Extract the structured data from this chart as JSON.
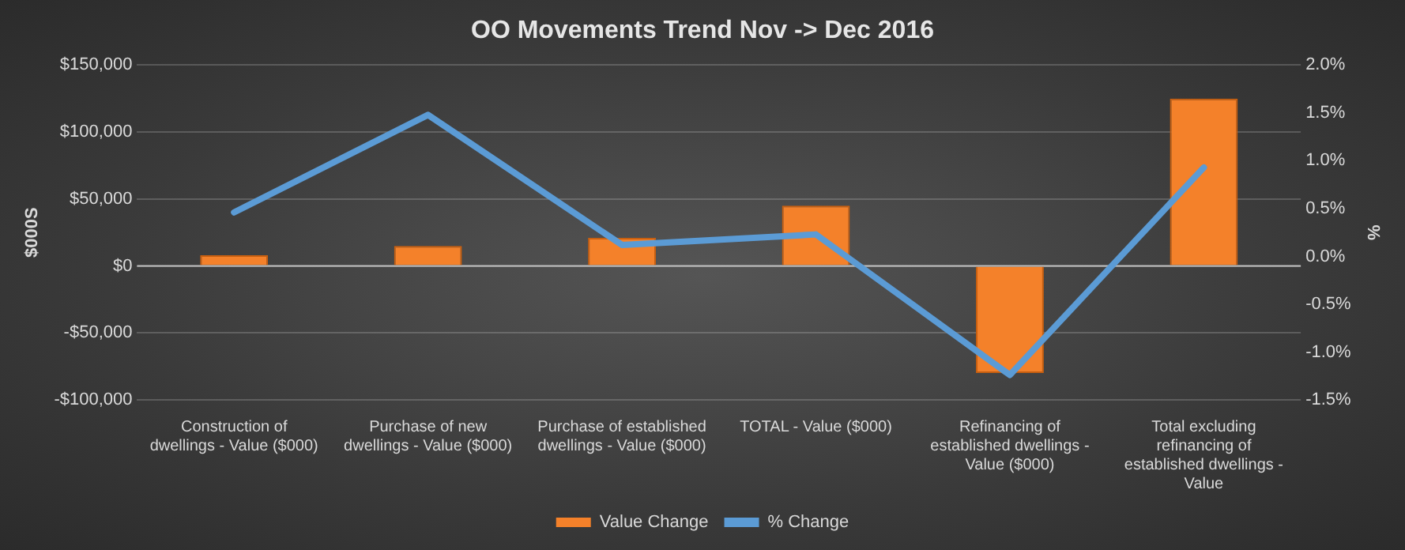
{
  "chart_data": {
    "type": "bar",
    "title": "OO Movements Trend Nov -> Dec 2016",
    "categories": [
      "Construction of dwellings - Value ($000)",
      "Purchase of new dwellings - Value ($000)",
      "Purchase of established dwellings - Value ($000)",
      "TOTAL - Value ($000)",
      "Refinancing of established dwellings - Value ($000)",
      "Total excluding refinancing of established dwellings - Value"
    ],
    "series": [
      {
        "name": "Value Change",
        "color": "#f4812a",
        "values": [
          8000,
          15000,
          21000,
          45000,
          -80000,
          125000
        ]
      },
      {
        "name": "% Change",
        "type": "line",
        "axis": "y2",
        "color": "#5b9bd5",
        "values": [
          0.46,
          1.48,
          0.12,
          0.23,
          -1.24,
          0.93
        ]
      }
    ],
    "ylabel": "$000S",
    "y2label": "%",
    "ylim": [
      -100000,
      150000
    ],
    "yticks": [
      {
        "value": -100000,
        "label": "-$100,000"
      },
      {
        "value": -50000,
        "label": "-$50,000"
      },
      {
        "value": 0,
        "label": "$0"
      },
      {
        "value": 50000,
        "label": "$50,000"
      },
      {
        "value": 100000,
        "label": "$100,000"
      },
      {
        "value": 150000,
        "label": "$150,000"
      }
    ],
    "y2lim": [
      -1.5,
      2.0
    ],
    "y2ticks": [
      {
        "value": -1.5,
        "label": "-1.5%"
      },
      {
        "value": -1.0,
        "label": "-1.0%"
      },
      {
        "value": -0.5,
        "label": "-0.5%"
      },
      {
        "value": 0,
        "label": "0.0%"
      },
      {
        "value": 0.5,
        "label": "0.5%"
      },
      {
        "value": 1.0,
        "label": "1.0%"
      },
      {
        "value": 1.5,
        "label": "1.5%"
      },
      {
        "value": 2.0,
        "label": "2.0%"
      }
    ],
    "grid": "y",
    "legend": "bottom",
    "marker": "none",
    "line_style": "solid"
  }
}
